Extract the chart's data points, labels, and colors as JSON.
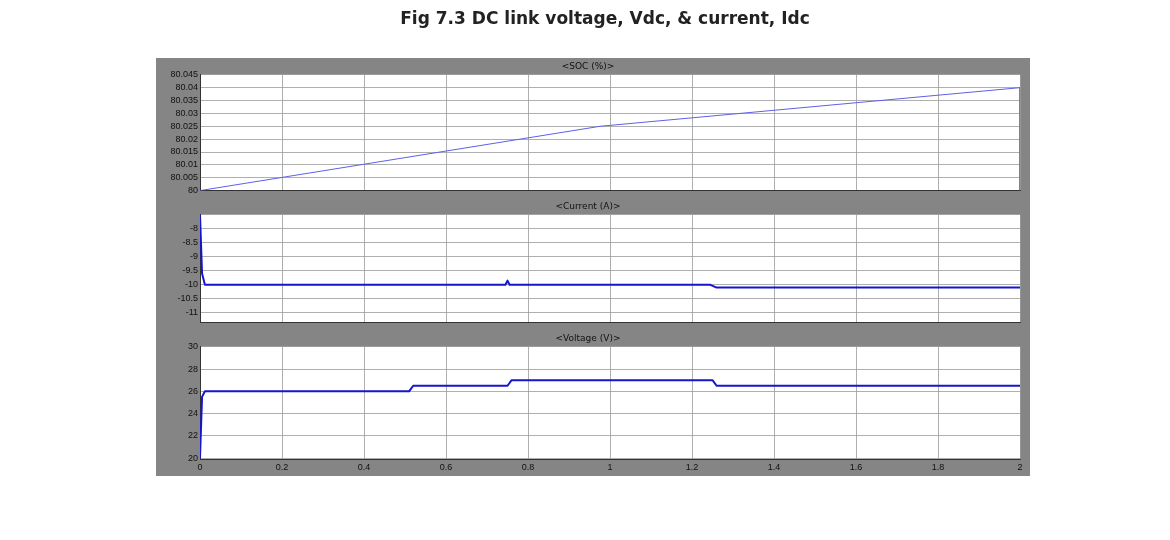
{
  "chart_data": [
    {
      "type": "line",
      "title": "<SOC (%)>",
      "annotations": [
        "Fig 7.3 DC link voltage, Vdc, & current, Idc"
      ],
      "x": [
        0,
        0.976,
        2,
        2
      ],
      "series": [
        {
          "color": "#6060e8",
          "values": [
            80,
            80.025,
            80.04,
            80
          ]
        }
      ],
      "xlim": [
        0,
        2
      ],
      "xticks": [
        0,
        0.2,
        0.4,
        0.6,
        0.8,
        1,
        1.2,
        1.4,
        1.6,
        1.8,
        2
      ],
      "ylim": [
        80,
        80.045
      ],
      "yticks": [
        80,
        80.005,
        80.01,
        80.015,
        80.02,
        80.025,
        80.03,
        80.035,
        80.04,
        80.045
      ],
      "tick_labels": "y",
      "grid": true,
      "legend": false,
      "marker": "none",
      "line_style": "solid"
    },
    {
      "type": "line",
      "title": "<Current (A)>",
      "x": [
        0,
        0.005,
        0.012,
        0.745,
        0.75,
        0.755,
        1.245,
        1.26,
        2
      ],
      "series": [
        {
          "color": "#1515d0",
          "values": [
            -7.5,
            -9.6,
            -10,
            -10,
            -9.85,
            -10,
            -10,
            -10.1,
            -10.1
          ]
        }
      ],
      "xlim": [
        0,
        2
      ],
      "xticks": [
        0,
        0.2,
        0.4,
        0.6,
        0.8,
        1,
        1.2,
        1.4,
        1.6,
        1.8,
        2
      ],
      "ylim": [
        -11.35,
        -7.5
      ],
      "yticks": [
        -11,
        -10.5,
        -10,
        -9.5,
        -9,
        -8.5,
        -8
      ],
      "tick_labels": "y",
      "grid": true,
      "legend": false,
      "marker": "none",
      "line_style": "solid"
    },
    {
      "type": "line",
      "title": "<Voltage (V)>",
      "x": [
        0,
        0.005,
        0.012,
        0.51,
        0.52,
        0.75,
        0.76,
        1.25,
        1.26,
        2
      ],
      "series": [
        {
          "color": "#1515d0",
          "values": [
            20,
            25.5,
            26,
            26,
            26.5,
            26.5,
            27,
            27,
            26.5,
            26.5
          ]
        }
      ],
      "xlim": [
        0,
        2
      ],
      "xticks": [
        0,
        0.2,
        0.4,
        0.6,
        0.8,
        1,
        1.2,
        1.4,
        1.6,
        1.8,
        2
      ],
      "ylim": [
        19.9,
        30
      ],
      "yticks": [
        20,
        22,
        24,
        26,
        28,
        30
      ],
      "grid": true,
      "legend": false,
      "marker": "none",
      "line_style": "solid"
    }
  ]
}
